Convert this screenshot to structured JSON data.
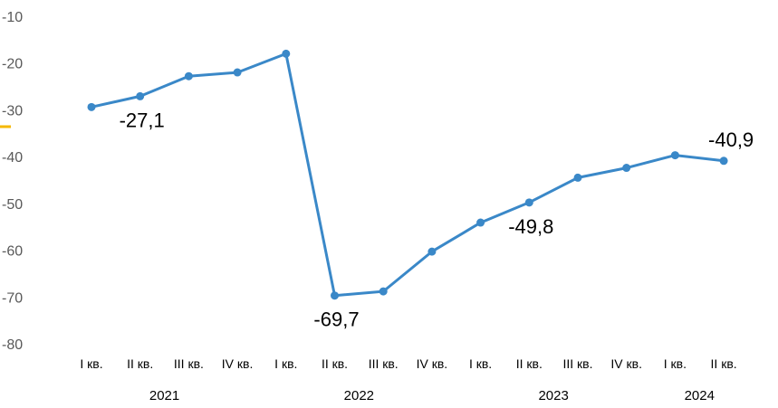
{
  "chart_data": {
    "type": "line",
    "title": "",
    "xlabel": "",
    "ylabel": "",
    "ylim": [
      -80,
      -10
    ],
    "yticks": [
      -10,
      -20,
      -30,
      -40,
      -50,
      -60,
      -70,
      -80
    ],
    "grid": false,
    "legend": "none",
    "categories": [
      "I кв.",
      "II кв.",
      "III кв.",
      "IV кв.",
      "I кв.",
      "II кв.",
      "III кв.",
      "IV кв.",
      "I кв.",
      "II кв.",
      "III кв.",
      "IV кв.",
      "I кв.",
      "II кв."
    ],
    "years": [
      {
        "label": "2021",
        "quarters": 4
      },
      {
        "label": "2022",
        "quarters": 4
      },
      {
        "label": "2023",
        "quarters": 4
      },
      {
        "label": "2024",
        "quarters": 2
      }
    ],
    "series": [
      {
        "values": [
          -29.4,
          -27.1,
          -22.8,
          -22.0,
          -18.0,
          -69.7,
          -68.8,
          -60.3,
          -54.1,
          -49.8,
          -44.5,
          -42.4,
          -39.7,
          -40.9
        ],
        "color": "#3a88c8"
      }
    ],
    "data_labels": [
      {
        "index": 1,
        "text": "-27,1",
        "position": "below"
      },
      {
        "index": 5,
        "text": "-69,7",
        "position": "below"
      },
      {
        "index": 9,
        "text": "-49,8",
        "position": "below"
      },
      {
        "index": 13,
        "text": "-40,9",
        "position": "above"
      }
    ],
    "accent_color": "#f5b800"
  }
}
